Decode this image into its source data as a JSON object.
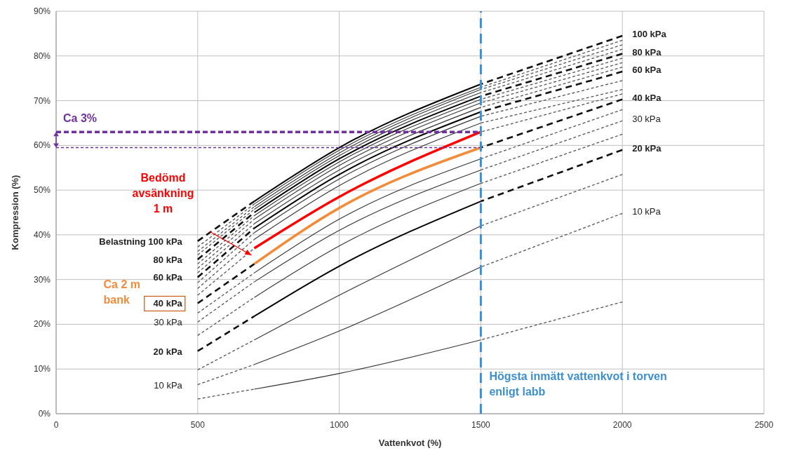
{
  "chart_data": {
    "type": "line",
    "xlabel": "Vattenkvot (%)",
    "ylabel": "Kompression (%)",
    "xlim": [
      0,
      2500
    ],
    "xticks": [
      0,
      500,
      1000,
      1500,
      2000,
      2500
    ],
    "ylim": [
      0,
      90
    ],
    "yticks": [
      {
        "value": 0,
        "label": "0%"
      },
      {
        "value": 10,
        "label": "10%"
      },
      {
        "value": 20,
        "label": "20%"
      },
      {
        "value": 30,
        "label": "30%"
      },
      {
        "value": 40,
        "label": "40%"
      },
      {
        "value": 50,
        "label": "50%"
      },
      {
        "value": 60,
        "label": "60%"
      },
      {
        "value": 70,
        "label": "70%"
      },
      {
        "value": 80,
        "label": "80%"
      },
      {
        "value": 90,
        "label": "90%"
      }
    ],
    "grid": true,
    "series": [
      {
        "line_style": "dashed",
        "color": "#555555",
        "x": [
          500,
          700,
          1000,
          1500,
          2000
        ],
        "values": [
          3.3,
          5.5,
          null,
          16.5,
          25
        ]
      },
      {
        "line_style": "dashed",
        "color": "#555555",
        "x": [
          500,
          700,
          1000,
          1500,
          2000
        ],
        "values": [
          6.5,
          11,
          null,
          32.8,
          44.8
        ]
      },
      {
        "line_style": "dashed",
        "color": "#555555",
        "x": [
          500,
          700,
          1000,
          1500,
          2000
        ],
        "values": [
          9.8,
          16.5,
          null,
          42,
          53.5
        ]
      },
      {
        "line_style": "dashed",
        "color": "#111111",
        "x": [
          500,
          700,
          1000,
          1500,
          2000
        ],
        "values": [
          14,
          21.8,
          null,
          47.5,
          59
        ]
      },
      {
        "line_style": "dashed",
        "color": "#555555",
        "x": [
          500,
          700,
          1000,
          1500,
          2000
        ],
        "values": [
          17.5,
          26,
          null,
          51.5,
          62.5
        ]
      },
      {
        "line_style": "dashed",
        "color": "#555555",
        "x": [
          500,
          700,
          1000,
          1500,
          2000
        ],
        "values": [
          20.5,
          29.5,
          null,
          54.5,
          65.5
        ]
      },
      {
        "line_style": "dashed",
        "color": "#555555",
        "x": [
          500,
          700,
          1000,
          1500,
          2000
        ],
        "values": [
          22.5,
          31.5,
          null,
          57,
          68
        ]
      },
      {
        "line_style": "dashed",
        "color": "#111111",
        "x": [
          500,
          700,
          1000,
          1500,
          2000
        ],
        "values": [
          24.7,
          33.5,
          null,
          59.5,
          70.3
        ]
      },
      {
        "line_style": "dashed",
        "color": "#555555",
        "x": [
          500,
          700,
          1000,
          1500,
          2000
        ],
        "values": [
          26.5,
          37,
          null,
          63,
          71.5
        ]
      },
      {
        "line_style": "dashed",
        "color": "#555555",
        "x": [
          500,
          700,
          1000,
          1500,
          2000
        ],
        "values": [
          28,
          39,
          null,
          65,
          72.5
        ]
      },
      {
        "line_style": "dashed",
        "color": "#555555",
        "x": [
          500,
          700,
          1000,
          1500,
          2000
        ],
        "values": [
          29.3,
          40.5,
          null,
          66.5,
          74.5
        ]
      },
      {
        "line_style": "dashed",
        "color": "#111111",
        "x": [
          500,
          700,
          1000,
          1500,
          2000
        ],
        "values": [
          30.5,
          41.5,
          null,
          67.5,
          76.5
        ]
      },
      {
        "line_style": "dashed",
        "color": "#555555",
        "x": [
          500,
          700,
          1000,
          1500,
          2000
        ],
        "values": [
          31.5,
          42.5,
          null,
          68.5,
          77.5
        ]
      },
      {
        "line_style": "dashed",
        "color": "#555555",
        "x": [
          500,
          700,
          1000,
          1500,
          2000
        ],
        "values": [
          32.5,
          43.5,
          null,
          69.5,
          78.5
        ]
      },
      {
        "line_style": "dashed",
        "color": "#555555",
        "x": [
          500,
          700,
          1000,
          1500,
          2000
        ],
        "values": [
          33.5,
          44.3,
          null,
          70.3,
          79.5
        ]
      },
      {
        "line_style": "dashed",
        "color": "#111111",
        "x": [
          500,
          700,
          1000,
          1500,
          2000
        ],
        "values": [
          34.5,
          45,
          null,
          71,
          80.5
        ]
      },
      {
        "line_style": "dashed",
        "color": "#555555",
        "x": [
          500,
          700,
          1000,
          1500,
          2000
        ],
        "values": [
          35.5,
          45.7,
          null,
          71.8,
          81.5
        ]
      },
      {
        "line_style": "dashed",
        "color": "#555555",
        "x": [
          500,
          700,
          1000,
          1500,
          2000
        ],
        "values": [
          36.3,
          46.3,
          null,
          72.5,
          82.5
        ]
      },
      {
        "line_style": "dashed",
        "color": "#555555",
        "x": [
          500,
          700,
          1000,
          1500,
          2000
        ],
        "values": [
          37.3,
          46.9,
          null,
          73,
          83.5
        ]
      },
      {
        "line_style": "dashed",
        "color": "#111111",
        "x": [
          500,
          700,
          1000,
          1500,
          2000
        ],
        "values": [
          38.6,
          47.5,
          null,
          73.7,
          84.5
        ]
      },
      {
        "line_style": "solid",
        "color": "#333333",
        "x": [
          700,
          1000,
          1500
        ],
        "values": [
          5.5,
          9,
          16.5
        ]
      },
      {
        "line_style": "solid",
        "color": "#333333",
        "x": [
          700,
          1000,
          1500
        ],
        "values": [
          11,
          18.5,
          32.8
        ]
      },
      {
        "line_style": "solid",
        "color": "#333333",
        "x": [
          700,
          1000,
          1500
        ],
        "values": [
          16.5,
          26.5,
          42
        ]
      },
      {
        "line_style": "solid",
        "color": "#000000",
        "x": [
          700,
          1000,
          1500
        ],
        "values": [
          21.8,
          33,
          47.5
        ]
      },
      {
        "line_style": "solid",
        "color": "#333333",
        "x": [
          700,
          1000,
          1500
        ],
        "values": [
          26,
          37.5,
          51.5
        ]
      },
      {
        "line_style": "solid",
        "color": "#333333",
        "x": [
          700,
          1000,
          1500
        ],
        "values": [
          29.5,
          41,
          54.5
        ]
      },
      {
        "line_style": "solid",
        "color": "#333333",
        "x": [
          700,
          1000,
          1500
        ],
        "values": [
          31.5,
          43.5,
          57
        ]
      },
      {
        "line_style": "solid",
        "color": "#333333",
        "x": [
          700,
          1000,
          1500
        ],
        "values": [
          39,
          51,
          65
        ]
      },
      {
        "line_style": "solid",
        "color": "#333333",
        "x": [
          700,
          1000,
          1500
        ],
        "values": [
          40.5,
          52.5,
          66.5
        ]
      },
      {
        "line_style": "solid",
        "color": "#000000",
        "x": [
          700,
          1000,
          1500
        ],
        "values": [
          41.5,
          53.5,
          67.5
        ]
      },
      {
        "line_style": "solid",
        "color": "#333333",
        "x": [
          700,
          1000,
          1500
        ],
        "values": [
          42.5,
          54.5,
          68.5
        ]
      },
      {
        "line_style": "solid",
        "color": "#333333",
        "x": [
          700,
          1000,
          1500
        ],
        "values": [
          43.5,
          55.5,
          69.5
        ]
      },
      {
        "line_style": "solid",
        "color": "#333333",
        "x": [
          700,
          1000,
          1500
        ],
        "values": [
          44.3,
          56.3,
          70.3
        ]
      },
      {
        "line_style": "solid",
        "color": "#000000",
        "x": [
          700,
          1000,
          1500
        ],
        "values": [
          45,
          57,
          71
        ]
      },
      {
        "line_style": "solid",
        "color": "#333333",
        "x": [
          700,
          1000,
          1500
        ],
        "values": [
          45.7,
          57.7,
          71.8
        ]
      },
      {
        "line_style": "solid",
        "color": "#333333",
        "x": [
          700,
          1000,
          1500
        ],
        "values": [
          46.3,
          58.3,
          72.5
        ]
      },
      {
        "line_style": "solid",
        "color": "#333333",
        "x": [
          700,
          1000,
          1500
        ],
        "values": [
          46.9,
          58.9,
          73
        ]
      },
      {
        "line_style": "solid",
        "color": "#000000",
        "x": [
          700,
          1000,
          1500
        ],
        "values": [
          47.5,
          59.5,
          73.7
        ]
      },
      {
        "line_style": "solid",
        "color": "#ff0000",
        "name": "Bedömd avsänkning 1 m",
        "x": [
          700,
          1000,
          1500
        ],
        "values": [
          37,
          48.5,
          63
        ]
      },
      {
        "line_style": "solid",
        "color": "#f28c3a",
        "name": "Ca 2 m bank",
        "x": [
          700,
          1000,
          1500
        ],
        "values": [
          33.5,
          46,
          59.5
        ]
      },
      {
        "line_style": "dashed",
        "color": "#7030a0",
        "name": "Ca 3%",
        "x": [
          0,
          1500
        ],
        "values": [
          63,
          63
        ]
      },
      {
        "line_style": "dashed",
        "color": "#7030a0",
        "x": [
          0,
          1500
        ],
        "values": [
          59.5,
          59.5
        ]
      }
    ],
    "ref_lines": [
      {
        "axis": "x",
        "value": 1500,
        "label": "Högsta inmätt vattenkvot i torven enligt labb",
        "color": "#3d8fd1",
        "line_style": "dashed"
      }
    ],
    "annotations": [
      "Belastning 100 kPa",
      "80 kPa",
      "60 kPa",
      "40 kPa",
      "30 kPa",
      "20 kPa",
      "10 kPa",
      "100 kPa",
      "80 kPa",
      "60 kPa",
      "40 kPa",
      "30 kPa",
      "20 kPa",
      "10 kPa"
    ]
  }
}
